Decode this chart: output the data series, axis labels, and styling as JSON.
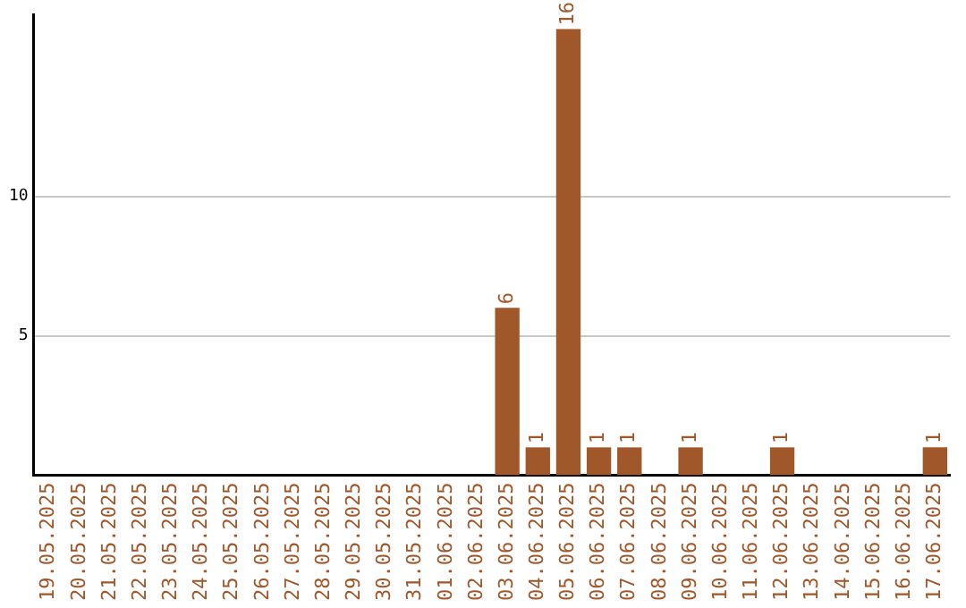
{
  "chart_data": {
    "type": "bar",
    "categories": [
      "19.05.2025",
      "20.05.2025",
      "21.05.2025",
      "22.05.2025",
      "23.05.2025",
      "24.05.2025",
      "25.05.2025",
      "26.05.2025",
      "27.05.2025",
      "28.05.2025",
      "29.05.2025",
      "30.05.2025",
      "31.05.2025",
      "01.06.2025",
      "02.06.2025",
      "03.06.2025",
      "04.06.2025",
      "05.06.2025",
      "06.06.2025",
      "07.06.2025",
      "08.06.2025",
      "09.06.2025",
      "10.06.2025",
      "11.06.2025",
      "12.06.2025",
      "13.06.2025",
      "14.06.2025",
      "15.06.2025",
      "16.06.2025",
      "17.06.2025"
    ],
    "values": [
      0,
      0,
      0,
      0,
      0,
      0,
      0,
      0,
      0,
      0,
      0,
      0,
      0,
      0,
      0,
      6,
      1,
      16,
      1,
      1,
      0,
      1,
      0,
      0,
      1,
      0,
      0,
      0,
      0,
      1
    ],
    "value_labels": [
      null,
      null,
      null,
      null,
      null,
      null,
      null,
      null,
      null,
      null,
      null,
      null,
      null,
      null,
      null,
      "6",
      "1",
      "16",
      "1",
      "1",
      null,
      "1",
      null,
      null,
      "1",
      null,
      null,
      null,
      null,
      "1"
    ],
    "color": "#a0572a",
    "ylim": [
      0,
      16.5
    ],
    "yticks": [
      5,
      10
    ],
    "grid": "y",
    "legend": false
  }
}
